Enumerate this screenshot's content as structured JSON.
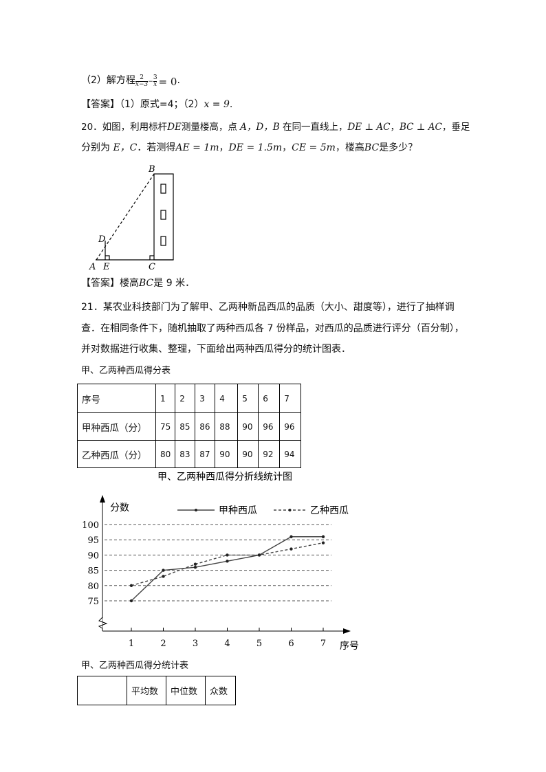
{
  "q19": {
    "part2": "（2）解方程",
    "eq_num1": "2",
    "eq_den1": "x−3",
    "eq_minus": "−",
    "eq_num2": "3",
    "eq_den2": "x",
    "eq_rhs": "= 0",
    "period": "."
  },
  "ans19": {
    "label": "【答案】",
    "text": "（1）原式=4；（2）",
    "math": "x = 9",
    "end": "."
  },
  "q20": {
    "line1_a": "20．如图，利用标杆",
    "line1_de": "DE",
    "line1_b": "测量楼高，点",
    "line1_pts": " A，D，B ",
    "line1_c": "在同一直线上，",
    "line1_m1": "DE ⊥ AC",
    "line1_sep": "，",
    "line1_m2": "BC ⊥ AC",
    "line1_d": "，垂足",
    "line2_a": "分别为",
    "line2_pts": " E，C",
    "line2_b": "．若测得",
    "line2_m1": "AE = 1m",
    "line2_m2": "DE = 1.5m",
    "line2_m3": "CE = 5m",
    "line2_c": "，楼高",
    "line2_bc": "BC",
    "line2_d": "是多少？",
    "figure": {
      "A": "A",
      "B": "B",
      "C": "C",
      "D": "D",
      "E": "E"
    }
  },
  "ans20": {
    "label": "【答案】",
    "a": "楼高",
    "bc": "BC",
    "b": "是 9 米．"
  },
  "q21": {
    "line1": "21．某农业科技部门为了解甲、乙两种新品西瓜的品质（大小、甜度等），进行了抽样调",
    "line2": "查．在相同条件下，随机抽取了两种西瓜各 7 份样品，对西瓜的品质进行评分（百分制），",
    "line3": "并对数据进行收集、整理，下面给出两种西瓜得分的统计图表．",
    "table1_title": "甲、乙两种西瓜得分表",
    "table1": {
      "header": [
        "序号",
        "1",
        "2",
        "3",
        "4",
        "5",
        "6",
        "7"
      ],
      "rows": [
        [
          "甲种西瓜（分）",
          "75",
          "85",
          "86",
          "88",
          "90",
          "96",
          "96"
        ],
        [
          "乙种西瓜（分）",
          "80",
          "83",
          "87",
          "90",
          "90",
          "92",
          "94"
        ]
      ]
    },
    "table2_title": "甲、乙两种西瓜得分统计表",
    "table2": {
      "header": [
        "",
        "平均数",
        "中位数",
        "众数"
      ]
    }
  },
  "chart_data": {
    "type": "line",
    "title": "甲、乙两种西瓜得分折线统计图",
    "xlabel": "序号",
    "ylabel": "分数",
    "categories": [
      "1",
      "2",
      "3",
      "4",
      "5",
      "6",
      "7"
    ],
    "yticks": [
      "75",
      "80",
      "85",
      "90",
      "95",
      "100"
    ],
    "ylim": [
      75,
      100
    ],
    "grid": true,
    "legend": "top-right",
    "series": [
      {
        "name": "甲种西瓜",
        "style": "solid",
        "values": [
          75,
          85,
          86,
          88,
          90,
          96,
          96
        ]
      },
      {
        "name": "乙种西瓜",
        "style": "dashed",
        "values": [
          80,
          83,
          87,
          90,
          90,
          92,
          94
        ]
      }
    ]
  }
}
